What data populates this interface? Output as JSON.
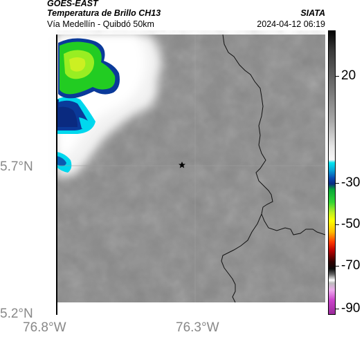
{
  "header": {
    "title_line1": "GOES-EAST",
    "title_line2": "Temperatura de Brillo CH13",
    "subtitle": "Vía Medellín - Quibdó 50km",
    "agency": "SIATA",
    "datetime": "2024-04-12 06:19"
  },
  "axes": {
    "lat_labels": [
      "5.7°N",
      "5.2°N"
    ],
    "lon_labels": [
      "76.8°W",
      "76.3°W"
    ]
  },
  "colorbar": {
    "ticks": [
      "20",
      "-30",
      "-50",
      "-70",
      "-90"
    ]
  },
  "map": {
    "marker": "star-icon",
    "background_color": "#8a8a8a",
    "border_color": "#000000",
    "cloud_colors": [
      "#ffffff",
      "#00e0f0",
      "#0a2a90",
      "#20d020",
      "#b0f020"
    ]
  }
}
